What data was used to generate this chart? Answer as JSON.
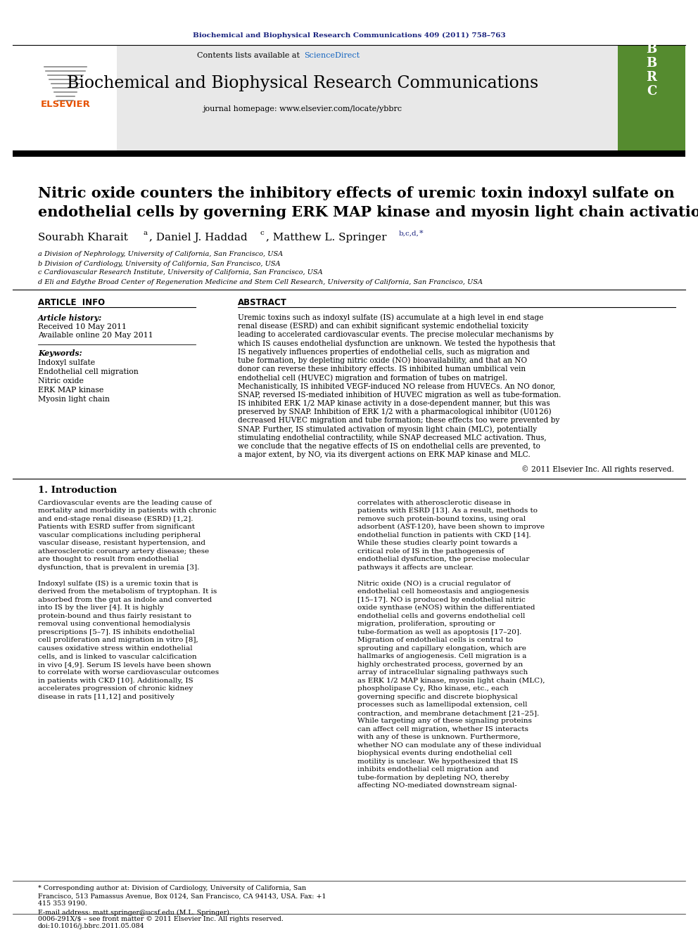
{
  "journal_ref": "Biochemical and Biophysical Research Communications 409 (2011) 758–763",
  "journal_name": "Biochemical and Biophysical Research Communications",
  "contents_line": "Contents lists available at ScienceDirect",
  "journal_homepage": "journal homepage: www.elsevier.com/locate/ybbrc",
  "title_line1": "Nitric oxide counters the inhibitory effects of uremic toxin indoxyl sulfate on",
  "title_line2": "endothelial cells by governing ERK MAP kinase and myosin light chain activation",
  "affil_a": "a Division of Nephrology, University of California, San Francisco, USA",
  "affil_b": "b Division of Cardiology, University of California, San Francisco, USA",
  "affil_c": "c Cardiovascular Research Institute, University of California, San Francisco, USA",
  "affil_d": "d Eli and Edythe Broad Center of Regeneration Medicine and Stem Cell Research, University of California, San Francisco, USA",
  "article_info_header": "ARTICLE  INFO",
  "abstract_header": "ABSTRACT",
  "article_history_label": "Article history:",
  "received": "Received 10 May 2011",
  "available": "Available online 20 May 2011",
  "keywords_label": "Keywords:",
  "keywords": [
    "Indoxyl sulfate",
    "Endothelial cell migration",
    "Nitric oxide",
    "ERK MAP kinase",
    "Myosin light chain"
  ],
  "abstract_text": "Uremic toxins such as indoxyl sulfate (IS) accumulate at a high level in end stage renal disease (ESRD) and can exhibit significant systemic endothelial toxicity leading to accelerated cardiovascular events. The precise molecular mechanisms by which IS causes endothelial dysfunction are unknown. We tested the hypothesis that IS negatively influences properties of endothelial cells, such as migration and tube formation, by depleting nitric oxide (NO) bioavailability, and that an NO donor can reverse these inhibitory effects. IS inhibited human umbilical vein endothelial cell (HUVEC) migration and formation of tubes on matrigel. Mechanistically, IS inhibited VEGF-induced NO release from HUVECs. An NO donor, SNAP, reversed IS-mediated inhibition of HUVEC migration as well as tube-formation. IS inhibited ERK 1/2 MAP kinase activity in a dose-dependent manner, but this was preserved by SNAP. Inhibition of ERK 1/2 with a pharmacological inhibitor (U0126) decreased HUVEC migration and tube formation; these effects too were prevented by SNAP. Further, IS stimulated activation of myosin light chain (MLC), potentially stimulating endothelial contractility, while SNAP decreased MLC activation. Thus, we conclude that the negative effects of IS on endothelial cells are prevented, to a major extent, by NO, via its divergent actions on ERK MAP kinase and MLC.",
  "copyright": "© 2011 Elsevier Inc. All rights reserved.",
  "intro_header": "1. Introduction",
  "intro_col1": "    Cardiovascular events are the leading cause of mortality and morbidity in patients with chronic and end-stage renal disease (ESRD) [1,2]. Patients with ESRD suffer from significant vascular complications including peripheral vascular disease, resistant hypertension, and atherosclerotic coronary artery disease; these are thought to result from endothelial dysfunction, that is prevalent in uremia [3].\n\n    Indoxyl sulfate (IS) is a uremic toxin that is derived from the metabolism of tryptophan. It is absorbed from the gut as indole and converted into IS by the liver [4]. It is highly protein-bound and thus fairly resistant to removal using conventional hemodialysis prescriptions [5–7]. IS inhibits endothelial cell proliferation and migration in vitro [8], causes oxidative stress within endothelial cells, and is linked to vascular calcification in vivo [4,9]. Serum IS levels have been shown to correlate with worse cardiovascular outcomes in patients with CKD [10]. Additionally, IS accelerates progression of chronic kidney disease in rats [11,12] and positively",
  "intro_col2": "correlates with atherosclerotic disease in patients with ESRD [13]. As a result, methods to remove such protein-bound toxins, using oral adsorbent (AST-120), have been shown to improve endothelial function in patients with CKD [14]. While these studies clearly point towards a critical role of IS in the pathogenesis of endothelial dysfunction, the precise molecular pathways it affects are unclear.\n\n    Nitric oxide (NO) is a crucial regulator of endothelial cell homeostasis and angiogenesis [15–17]. NO is produced by endothelial nitric oxide synthase (eNOS) within the differentiated endothelial cells and governs endothelial cell migration, proliferation, sprouting or tube-formation as well as apoptosis [17–20]. Migration of endothelial cells is central to sprouting and capillary elongation, which are hallmarks of angiogenesis. Cell migration is a highly orchestrated process, governed by an array of intracellular signaling pathways such as ERK 1/2 MAP kinase, myosin light chain (MLC), phospholipase Cγ, Rho kinase, etc., each governing specific and discrete biophysical processes such as lamellipodal extension, cell contraction, and membrane detachment [21–25]. While targeting any of these signaling proteins can affect cell migration, whether IS interacts with any of these is unknown. Furthermore, whether NO can modulate any of these individual biophysical events during endothelial cell motility is unclear. We hypothesized that IS inhibits endothelial cell migration and tube-formation by depleting NO, thereby affecting NO-mediated downstream signal-",
  "footnote_line1": "* Corresponding author at: Division of Cardiology, University of California, San",
  "footnote_line2": "Francisco, 513 Pamassus Avenue, Box 0124, San Francisco, CA 94143, USA. Fax: +1",
  "footnote_line3": "415 353 9190.",
  "footnote_email": "E-mail address: matt.springer@ucsf.edu (M.L. Springer).",
  "footer_left": "0006-291X/$ – see front matter © 2011 Elsevier Inc. All rights reserved.",
  "footer_doi": "doi:10.1016/j.bbrc.2011.05.084",
  "header_color": "#1a237e",
  "sciencedirect_color": "#1565c0",
  "bg_header": "#e8e8e8",
  "bg_white": "#ffffff",
  "bbrc_green": "#558b2f",
  "elsevier_orange": "#e65100"
}
